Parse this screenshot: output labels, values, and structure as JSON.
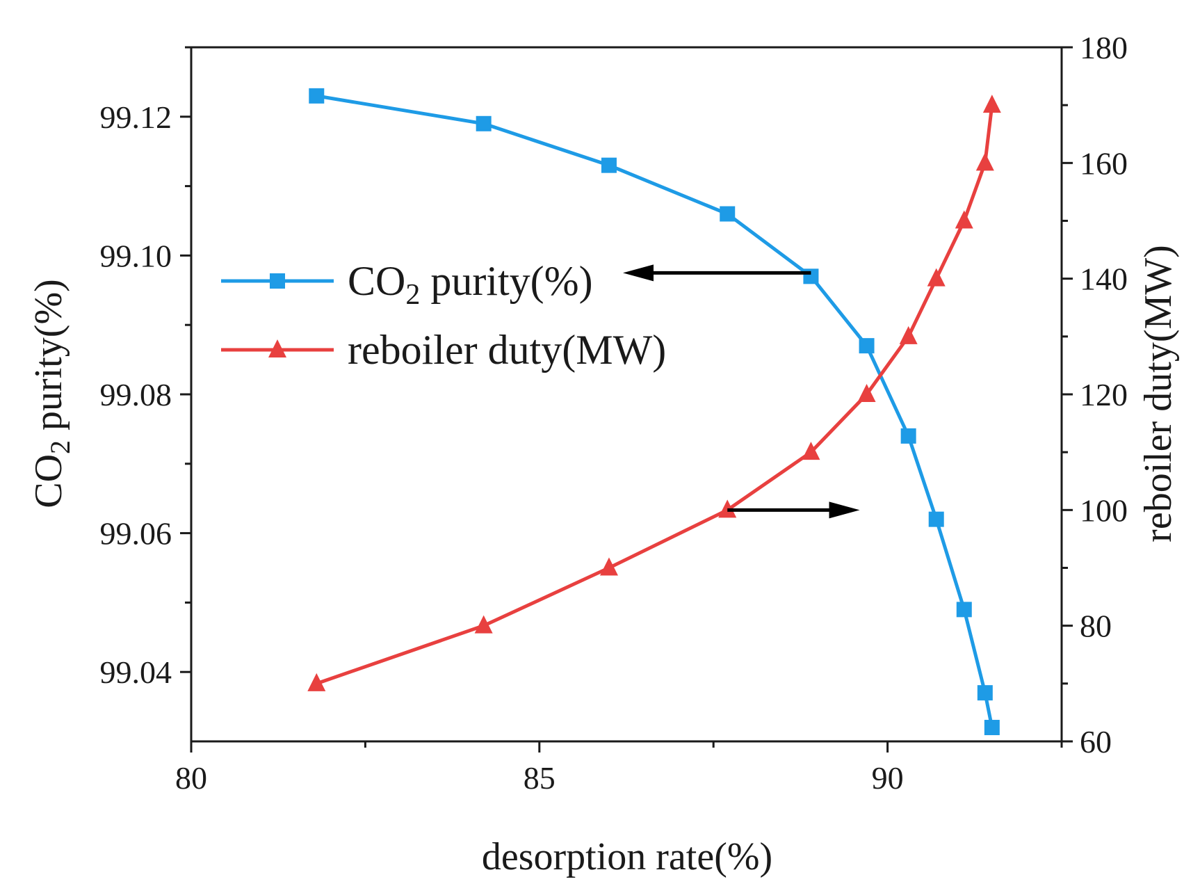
{
  "chart_data": {
    "type": "line",
    "title": "",
    "xlabel": "desorption rate(%)",
    "ylabel_left": {
      "pre": "CO",
      "sub": "2",
      "post": " purity(%)"
    },
    "ylabel_right": "reboiler duty(MW)",
    "xlim": [
      80,
      92.5
    ],
    "ylim_left": [
      99.03,
      99.13
    ],
    "ylim_right": [
      60,
      180
    ],
    "x_ticks": [
      "80",
      "85",
      "90"
    ],
    "x_tick_values": [
      80,
      85,
      90
    ],
    "x_minor_ticks": [
      82.5,
      87.5,
      92.5
    ],
    "y_left_ticks": [
      "99.04",
      "99.06",
      "99.08",
      "99.10",
      "99.12"
    ],
    "y_left_tick_values": [
      99.04,
      99.06,
      99.08,
      99.1,
      99.12
    ],
    "y_left_minor_ticks": [
      99.05,
      99.07,
      99.09,
      99.11,
      99.13
    ],
    "y_right_ticks": [
      "60",
      "80",
      "100",
      "120",
      "140",
      "160",
      "180"
    ],
    "y_right_tick_values": [
      60,
      80,
      100,
      120,
      140,
      160,
      180
    ],
    "y_right_minor_ticks": [
      70,
      90,
      110,
      130,
      150,
      170
    ],
    "grid": false,
    "legend_position": "upper-left",
    "series": [
      {
        "name": "CO2 purity(%)",
        "label": {
          "pre": "CO",
          "sub": "2",
          "post": " purity(%)"
        },
        "axis": "left",
        "marker": "square",
        "color": "#1e9be6",
        "x": [
          81.8,
          84.2,
          86.0,
          87.7,
          88.9,
          89.7,
          90.3,
          90.7,
          91.1,
          91.4,
          91.5
        ],
        "y": [
          99.123,
          99.119,
          99.113,
          99.106,
          99.097,
          99.087,
          99.074,
          99.062,
          99.049,
          99.037,
          99.032
        ]
      },
      {
        "name": "reboiler duty(MW)",
        "label": {
          "pre": "reboiler duty(MW)",
          "sub": "",
          "post": ""
        },
        "axis": "right",
        "marker": "triangle",
        "color": "#e8403f",
        "x": [
          81.8,
          84.2,
          86.0,
          87.7,
          88.9,
          89.7,
          90.3,
          90.7,
          91.1,
          91.4,
          91.5
        ],
        "y": [
          70,
          80,
          90,
          100,
          110,
          120,
          130,
          140,
          150,
          160,
          170
        ]
      }
    ],
    "annotations": [
      {
        "type": "arrow",
        "direction": "left",
        "axis": "left",
        "x_from": 88.9,
        "x_to": 86.2,
        "y": 99.0975
      },
      {
        "type": "arrow",
        "direction": "right",
        "axis": "right",
        "x_from": 87.7,
        "x_to": 89.6,
        "y": 100
      }
    ]
  }
}
